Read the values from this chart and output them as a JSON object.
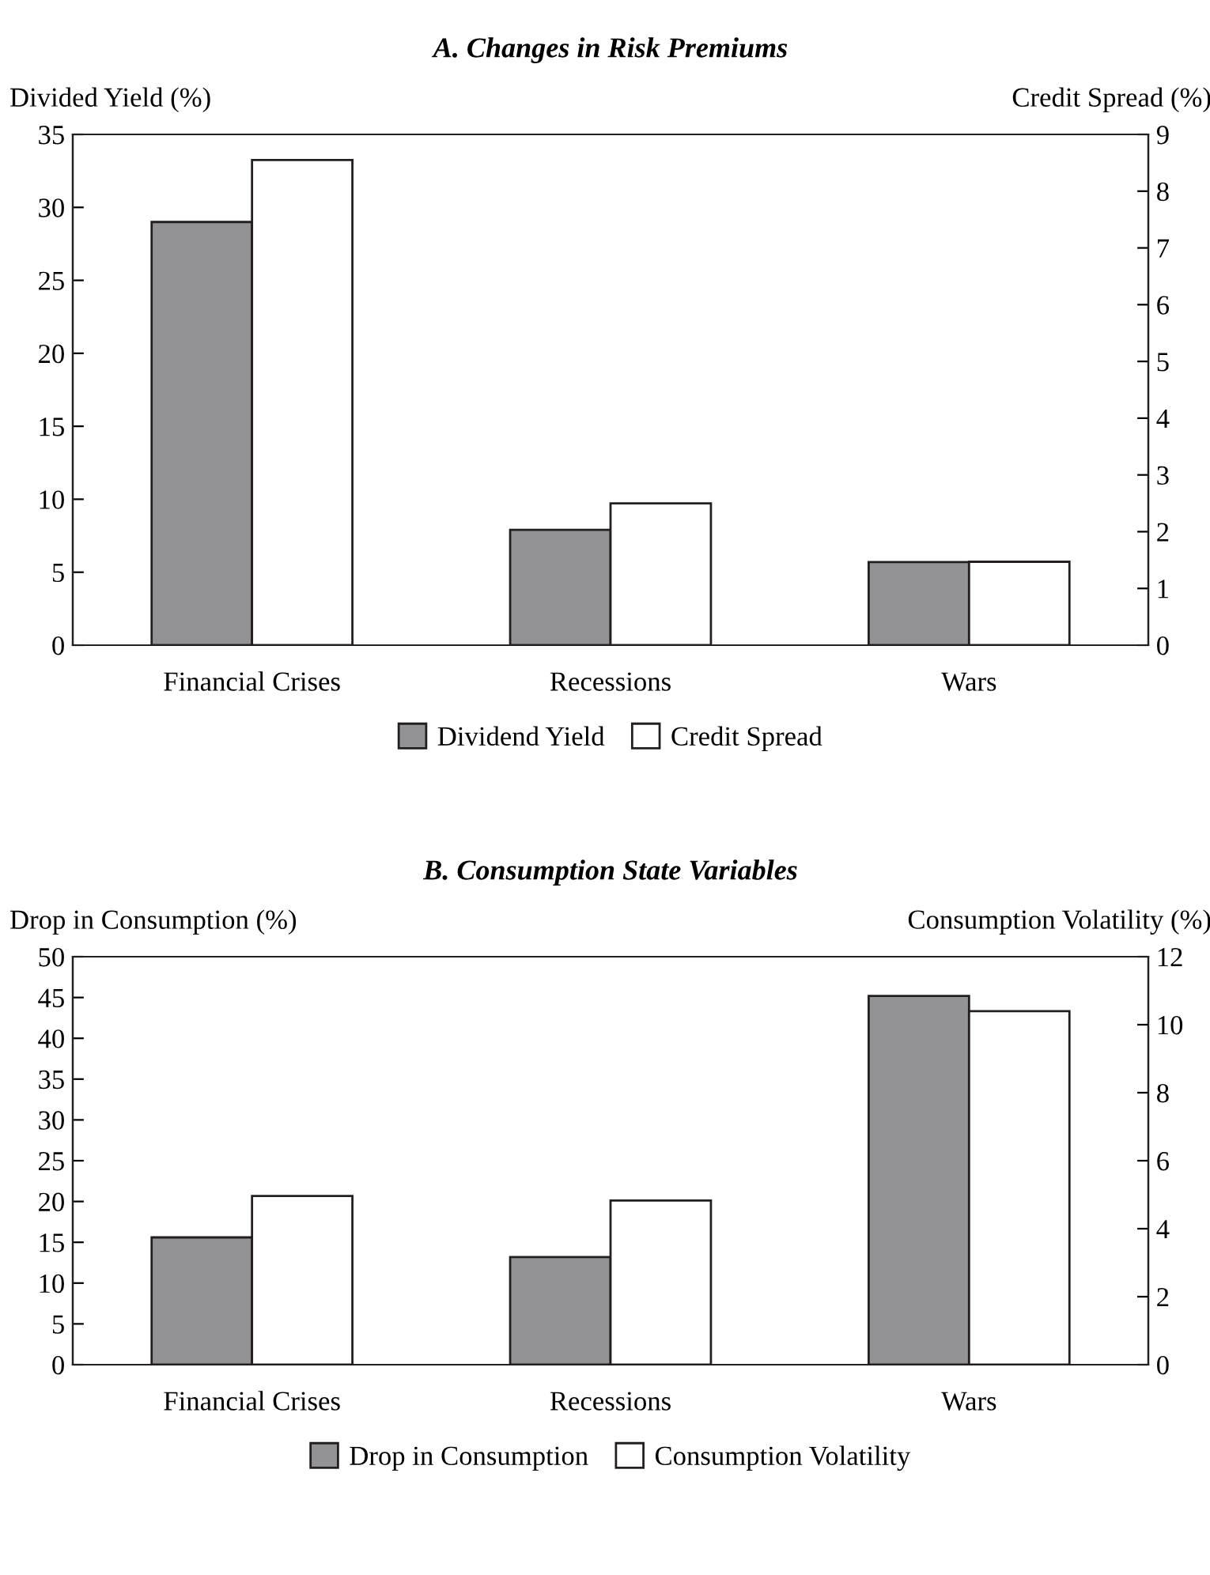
{
  "chart_data": [
    {
      "type": "bar",
      "title": "A. Changes in Risk Premiums",
      "ylabel": "Divided Yield (%)",
      "y2label": "Credit Spread (%)",
      "categories": [
        "Financial Crises",
        "Recessions",
        "Wars"
      ],
      "series": [
        {
          "name": "Dividend Yield",
          "color": "#939396",
          "values": [
            29.0,
            7.9,
            5.7
          ]
        },
        {
          "name": "Credit Spread",
          "color": "#ffffff",
          "values": [
            8.55,
            2.5,
            1.47
          ],
          "axis": "y2"
        }
      ],
      "ylim": [
        0,
        35
      ],
      "yticks": [
        0,
        5,
        10,
        15,
        20,
        25,
        30,
        35
      ],
      "y2lim": [
        0,
        9
      ],
      "y2ticks": [
        0,
        1,
        2,
        3,
        4,
        5,
        6,
        7,
        8,
        9
      ],
      "legend": "bottom",
      "grid": false
    },
    {
      "type": "bar",
      "title": "B. Consumption State Variables",
      "ylabel": "Drop in Consumption (%)",
      "y2label": "Consumption Volatility (%)",
      "categories": [
        "Financial Crises",
        "Recessions",
        "Wars"
      ],
      "series": [
        {
          "name": "Drop in Consumption",
          "color": "#939396",
          "values": [
            15.6,
            13.2,
            45.2
          ]
        },
        {
          "name": "Consumption Volatility",
          "color": "#ffffff",
          "values": [
            4.96,
            4.83,
            10.4
          ],
          "axis": "y2"
        }
      ],
      "ylim": [
        0,
        50
      ],
      "yticks": [
        0,
        5,
        10,
        15,
        20,
        25,
        30,
        35,
        40,
        45,
        50
      ],
      "y2lim": [
        0,
        12
      ],
      "y2ticks": [
        0,
        2,
        4,
        6,
        8,
        10,
        12
      ],
      "legend": "bottom",
      "grid": false
    }
  ]
}
